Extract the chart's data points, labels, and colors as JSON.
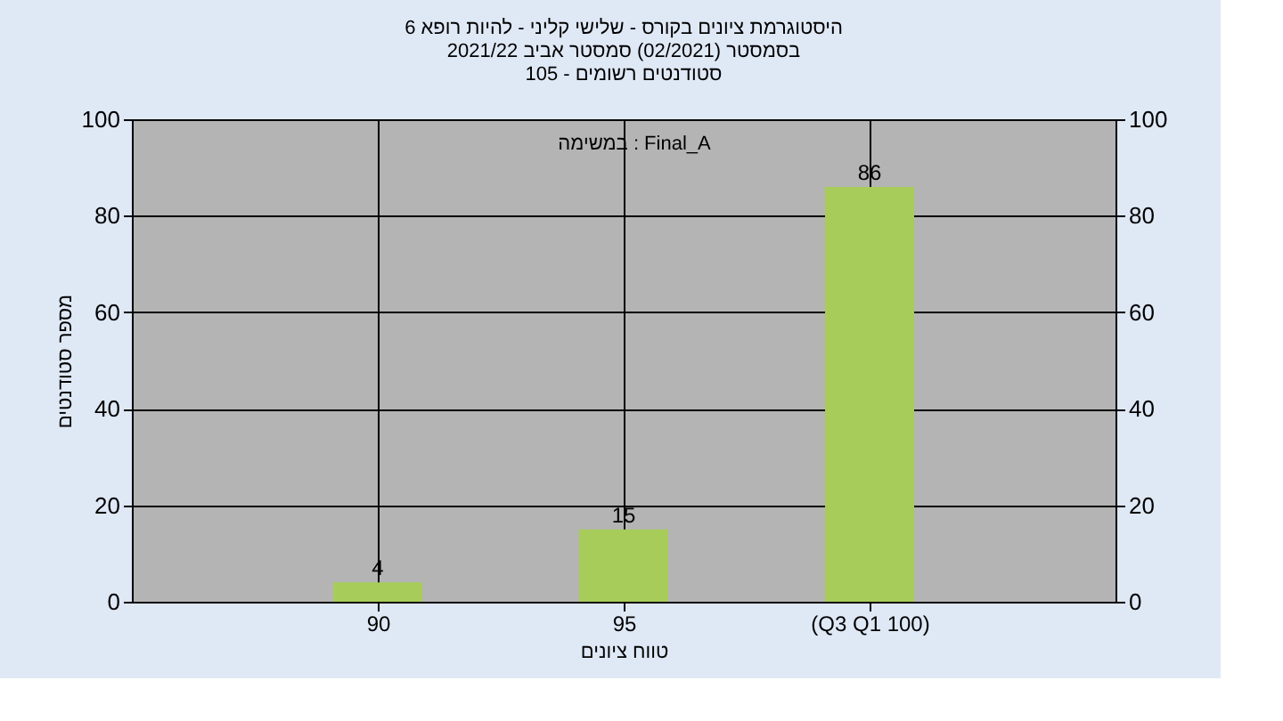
{
  "chart_data": {
    "type": "bar",
    "title": [
      "היסטוגרמת ציונים בקורס - שלישי קליני - להיות רופא 6",
      "בסמסטר  (02/2021)  סמסטר אביב 2021/22",
      "סטודנטים רשומים - 105"
    ],
    "xlabel": "טווח ציונים",
    "ylabel": "מספר סטודנטים",
    "annotations": [
      "במשימה : Final_A"
    ],
    "categories": [
      "90",
      "95",
      "(Q3 Q1 100)"
    ],
    "values": [
      4,
      15,
      86
    ],
    "color": "#a8cc5a",
    "ylim": [
      0,
      100
    ],
    "yticks": [
      0,
      20,
      40,
      60,
      80,
      100
    ],
    "y2lim": [
      0,
      100
    ],
    "y2ticks": [
      0,
      20,
      40,
      60,
      80,
      100
    ],
    "grid": true,
    "data_labels": true
  }
}
